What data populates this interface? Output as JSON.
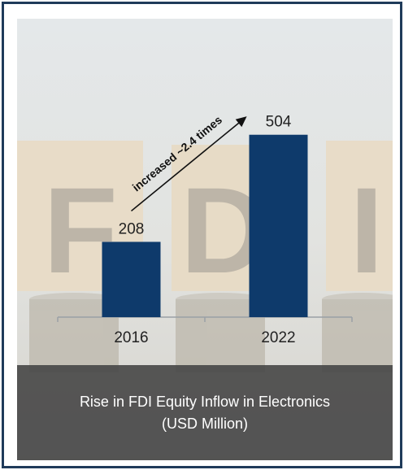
{
  "background": {
    "letters": [
      "F",
      "D",
      "I"
    ]
  },
  "chart_data": {
    "type": "bar",
    "categories": [
      "2016",
      "2022"
    ],
    "values": [
      208,
      504
    ],
    "data_labels": [
      "208",
      "504"
    ],
    "title": "",
    "xlabel": "",
    "ylabel": "",
    "ylim": [
      0,
      600
    ],
    "bar_color": "#0e3a6b",
    "annotation": "increased ~2.4 times"
  },
  "caption": {
    "line1": "Rise in FDI Equity Inflow in Electronics",
    "line2": "(USD Million)"
  }
}
